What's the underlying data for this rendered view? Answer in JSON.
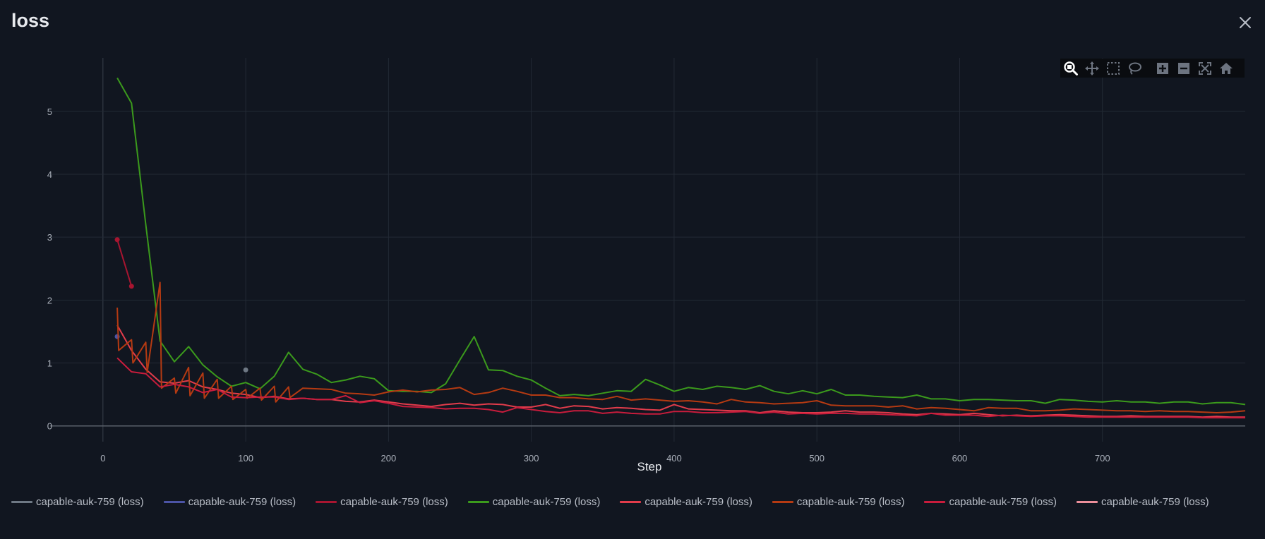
{
  "title": "loss",
  "chart_data": {
    "type": "line",
    "title": "loss",
    "xlabel": "Step",
    "ylabel": "",
    "xlim": [
      -37,
      800
    ],
    "ylim": [
      -0.25,
      5.85
    ],
    "xticks": [
      0,
      100,
      200,
      300,
      400,
      500,
      600,
      700
    ],
    "yticks": [
      0,
      1,
      2,
      3,
      4,
      5
    ],
    "grid": true,
    "legend_position": "bottom",
    "series": [
      {
        "name": "capable-auk-759 (loss)",
        "color": "#6e7884",
        "x": [
          100
        ],
        "y": [
          0.89
        ]
      },
      {
        "name": "capable-auk-759 (loss)",
        "color": "#4c54a6",
        "x": [
          10
        ],
        "y": [
          1.42
        ]
      },
      {
        "name": "capable-auk-759 (loss)",
        "color": "#a81530",
        "x": [
          10,
          20
        ],
        "y": [
          2.96,
          2.22
        ]
      },
      {
        "name": "capable-auk-759 (loss)",
        "color": "#3b9a1c",
        "x": [
          10,
          20,
          30,
          40,
          50,
          60,
          70,
          80,
          90,
          100,
          110,
          120,
          130,
          140,
          150,
          160,
          170,
          180,
          190,
          200,
          210,
          220,
          230,
          240,
          250,
          260,
          270,
          280,
          290,
          300,
          310,
          320,
          330,
          340,
          350,
          360,
          370,
          380,
          390,
          400,
          410,
          420,
          430,
          440,
          450,
          460,
          470,
          480,
          490,
          500,
          510,
          520,
          530,
          540,
          550,
          560,
          570,
          580,
          590,
          600,
          610,
          620,
          630,
          640,
          650,
          660,
          670,
          680,
          690,
          700,
          710,
          720,
          730,
          740,
          750,
          760,
          770,
          780,
          790,
          800
        ],
        "y": [
          5.53,
          5.13,
          3.2,
          1.35,
          1.02,
          1.26,
          0.97,
          0.78,
          0.63,
          0.69,
          0.59,
          0.79,
          1.17,
          0.9,
          0.82,
          0.69,
          0.73,
          0.79,
          0.75,
          0.56,
          0.55,
          0.55,
          0.53,
          0.67,
          1.05,
          1.42,
          0.89,
          0.88,
          0.79,
          0.73,
          0.6,
          0.48,
          0.5,
          0.48,
          0.52,
          0.56,
          0.55,
          0.74,
          0.65,
          0.55,
          0.61,
          0.58,
          0.63,
          0.61,
          0.58,
          0.64,
          0.55,
          0.51,
          0.56,
          0.51,
          0.58,
          0.49,
          0.49,
          0.47,
          0.46,
          0.45,
          0.49,
          0.43,
          0.43,
          0.4,
          0.42,
          0.42,
          0.41,
          0.4,
          0.4,
          0.36,
          0.42,
          0.41,
          0.39,
          0.38,
          0.4,
          0.38,
          0.38,
          0.36,
          0.38,
          0.38,
          0.35,
          0.37,
          0.37,
          0.34
        ]
      },
      {
        "name": "capable-auk-759 (loss)",
        "color": "#e23c4b",
        "x": [
          10,
          20,
          30,
          40,
          50,
          60,
          70,
          80,
          90,
          100,
          110,
          120,
          130,
          140,
          150,
          160,
          170,
          180,
          190,
          200,
          210,
          220,
          230,
          240,
          250,
          260,
          270,
          280,
          290,
          300,
          310,
          320,
          330,
          340,
          350,
          360,
          370,
          380,
          390,
          400,
          410,
          420,
          430,
          440,
          450,
          460,
          470,
          480,
          490,
          500,
          510,
          520,
          530,
          540,
          550,
          560,
          570,
          580,
          590,
          600,
          610,
          620,
          630,
          640,
          650,
          660,
          670,
          680,
          690,
          700,
          710,
          720,
          730,
          740,
          750,
          760,
          770,
          780,
          790,
          800
        ],
        "y": [
          1.6,
          1.2,
          0.9,
          0.7,
          0.68,
          0.72,
          0.62,
          0.58,
          0.52,
          0.5,
          0.45,
          0.47,
          0.43,
          0.44,
          0.42,
          0.42,
          0.39,
          0.38,
          0.41,
          0.38,
          0.35,
          0.33,
          0.31,
          0.34,
          0.36,
          0.33,
          0.35,
          0.34,
          0.3,
          0.3,
          0.34,
          0.28,
          0.32,
          0.31,
          0.27,
          0.29,
          0.28,
          0.26,
          0.25,
          0.34,
          0.27,
          0.26,
          0.25,
          0.24,
          0.24,
          0.21,
          0.24,
          0.22,
          0.21,
          0.21,
          0.22,
          0.24,
          0.22,
          0.22,
          0.21,
          0.19,
          0.18,
          0.2,
          0.19,
          0.18,
          0.2,
          0.18,
          0.16,
          0.17,
          0.16,
          0.17,
          0.18,
          0.17,
          0.16,
          0.15,
          0.15,
          0.16,
          0.15,
          0.15,
          0.15,
          0.15,
          0.14,
          0.15,
          0.14,
          0.14
        ]
      },
      {
        "name": "capable-auk-759 (loss)",
        "color": "#b53a12",
        "x": [
          10,
          11,
          20,
          21,
          30,
          31,
          40,
          41,
          50,
          51,
          60,
          61,
          70,
          71,
          80,
          81,
          90,
          91,
          100,
          101,
          110,
          111,
          120,
          121,
          130,
          131,
          140,
          150,
          160,
          170,
          180,
          190,
          200,
          210,
          220,
          230,
          240,
          250,
          260,
          270,
          280,
          290,
          300,
          310,
          320,
          330,
          340,
          350,
          360,
          370,
          380,
          390,
          400,
          410,
          420,
          430,
          440,
          450,
          460,
          470,
          480,
          490,
          500,
          510,
          520,
          530,
          540,
          550,
          560,
          570,
          580,
          590,
          600,
          610,
          620,
          630,
          640,
          650,
          660,
          670,
          680,
          690,
          700,
          710,
          720,
          730,
          740,
          750,
          760,
          770,
          780,
          790,
          800
        ],
        "y": [
          1.88,
          1.2,
          1.37,
          1.0,
          1.33,
          0.85,
          2.28,
          0.6,
          0.76,
          0.52,
          0.93,
          0.48,
          0.84,
          0.44,
          0.74,
          0.44,
          0.63,
          0.42,
          0.58,
          0.44,
          0.6,
          0.41,
          0.63,
          0.38,
          0.62,
          0.45,
          0.6,
          0.59,
          0.58,
          0.52,
          0.51,
          0.49,
          0.54,
          0.57,
          0.54,
          0.57,
          0.58,
          0.61,
          0.5,
          0.53,
          0.6,
          0.55,
          0.49,
          0.49,
          0.45,
          0.45,
          0.43,
          0.42,
          0.47,
          0.41,
          0.43,
          0.41,
          0.39,
          0.4,
          0.38,
          0.35,
          0.42,
          0.38,
          0.37,
          0.35,
          0.36,
          0.37,
          0.4,
          0.33,
          0.32,
          0.32,
          0.32,
          0.3,
          0.32,
          0.27,
          0.29,
          0.28,
          0.26,
          0.24,
          0.29,
          0.28,
          0.28,
          0.24,
          0.24,
          0.25,
          0.27,
          0.26,
          0.25,
          0.24,
          0.24,
          0.23,
          0.24,
          0.23,
          0.23,
          0.22,
          0.21,
          0.22,
          0.24
        ]
      },
      {
        "name": "capable-auk-759 (loss)",
        "color": "#c81c3c",
        "x": [
          10,
          20,
          30,
          40,
          50,
          60,
          70,
          80,
          90,
          100,
          110,
          120,
          130,
          140,
          150,
          160,
          170,
          180,
          190,
          200,
          210,
          220,
          230,
          240,
          250,
          260,
          270,
          280,
          290,
          300,
          310,
          320,
          330,
          340,
          350,
          360,
          370,
          380,
          390,
          400,
          410,
          420,
          430,
          440,
          450,
          460,
          470,
          480,
          490,
          500,
          510,
          520,
          530,
          540,
          550,
          560,
          570,
          580,
          590,
          600,
          610,
          620,
          630,
          640,
          650,
          660,
          670,
          680,
          690,
          700,
          710,
          720,
          730,
          740,
          750,
          760,
          770,
          780,
          790,
          800
        ],
        "y": [
          1.08,
          0.86,
          0.83,
          0.62,
          0.66,
          0.62,
          0.53,
          0.58,
          0.46,
          0.45,
          0.46,
          0.46,
          0.42,
          0.44,
          0.42,
          0.42,
          0.48,
          0.37,
          0.4,
          0.36,
          0.31,
          0.3,
          0.29,
          0.27,
          0.28,
          0.28,
          0.26,
          0.22,
          0.29,
          0.26,
          0.23,
          0.21,
          0.24,
          0.24,
          0.2,
          0.22,
          0.2,
          0.19,
          0.19,
          0.23,
          0.23,
          0.21,
          0.21,
          0.22,
          0.23,
          0.2,
          0.22,
          0.19,
          0.2,
          0.19,
          0.2,
          0.2,
          0.19,
          0.19,
          0.18,
          0.17,
          0.16,
          0.2,
          0.17,
          0.17,
          0.17,
          0.15,
          0.17,
          0.16,
          0.15,
          0.16,
          0.16,
          0.15,
          0.14,
          0.14,
          0.14,
          0.14,
          0.14,
          0.14,
          0.14,
          0.14,
          0.13,
          0.13,
          0.13,
          0.13
        ]
      },
      {
        "name": "capable-auk-759 (loss)",
        "color": "#ec8f9b",
        "x": [],
        "y": []
      }
    ]
  }
}
